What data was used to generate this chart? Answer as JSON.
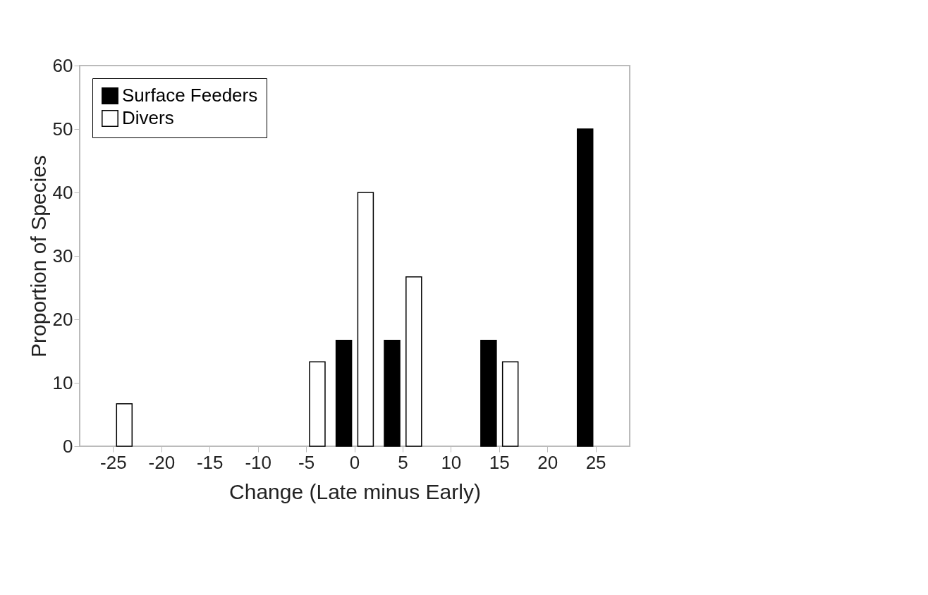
{
  "chart_data": {
    "type": "bar",
    "xlabel": "Change (Late minus Early)",
    "ylabel": "Proportion of Species",
    "categories": [
      "-25",
      "-20",
      "-15",
      "-10",
      "-5",
      "0",
      "5",
      "10",
      "15",
      "20",
      "25"
    ],
    "series": [
      {
        "name": "Surface Feeders",
        "color": "#000000",
        "values": [
          null,
          null,
          null,
          null,
          null,
          16.7,
          16.7,
          null,
          16.7,
          null,
          50
        ]
      },
      {
        "name": "Divers",
        "color": "#ffffff",
        "values": [
          6.7,
          null,
          null,
          null,
          13.3,
          40,
          26.7,
          null,
          13.3,
          null,
          null
        ]
      }
    ],
    "ylim": [
      0,
      60
    ],
    "yticks": [
      0,
      10,
      20,
      30,
      40,
      50,
      60
    ],
    "grid": false,
    "legend": "top left"
  }
}
